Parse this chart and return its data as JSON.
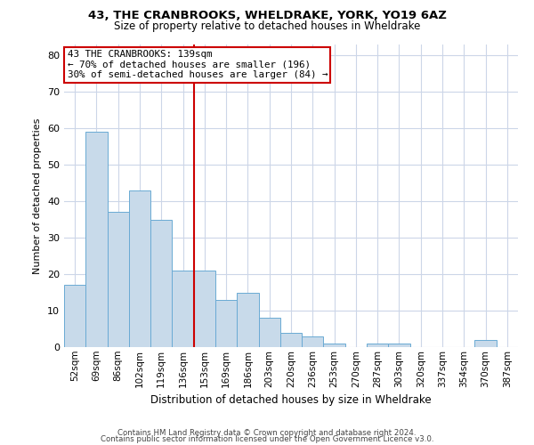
{
  "title1": "43, THE CRANBROOKS, WHELDRAKE, YORK, YO19 6AZ",
  "title2": "Size of property relative to detached houses in Wheldrake",
  "xlabel": "Distribution of detached houses by size in Wheldrake",
  "ylabel": "Number of detached properties",
  "bar_color": "#c8daea",
  "bar_edge_color": "#6aaad4",
  "categories": [
    "52sqm",
    "69sqm",
    "86sqm",
    "102sqm",
    "119sqm",
    "136sqm",
    "153sqm",
    "169sqm",
    "186sqm",
    "203sqm",
    "220sqm",
    "236sqm",
    "253sqm",
    "270sqm",
    "287sqm",
    "303sqm",
    "320sqm",
    "337sqm",
    "354sqm",
    "370sqm",
    "387sqm"
  ],
  "values": [
    17,
    59,
    37,
    43,
    35,
    21,
    21,
    13,
    15,
    8,
    4,
    3,
    1,
    0,
    1,
    1,
    0,
    0,
    0,
    2,
    0
  ],
  "vline_x": 5.5,
  "vline_color": "#cc0000",
  "ylim": [
    0,
    83
  ],
  "yticks": [
    0,
    10,
    20,
    30,
    40,
    50,
    60,
    70,
    80
  ],
  "footer1": "Contains HM Land Registry data © Crown copyright and database right 2024.",
  "footer2": "Contains public sector information licensed under the Open Government Licence v3.0.",
  "background_color": "#ffffff",
  "grid_color": "#ccd6e8",
  "annotation_line1": "43 THE CRANBROOKS: 139sqm",
  "annotation_line2": "← 70% of detached houses are smaller (196)",
  "annotation_line3": "30% of semi-detached houses are larger (84) →",
  "title1_fontsize": 9.5,
  "title2_fontsize": 8.5,
  "xlabel_fontsize": 8.5,
  "ylabel_fontsize": 8.0,
  "tick_fontsize": 7.5,
  "footer_fontsize": 6.2,
  "annot_fontsize": 7.8
}
